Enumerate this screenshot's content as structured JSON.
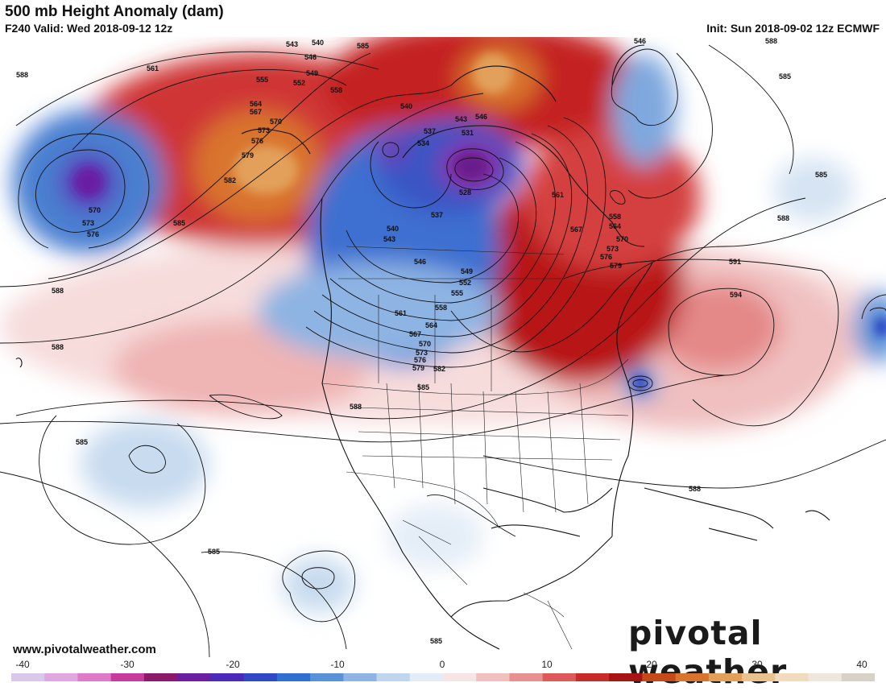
{
  "header": {
    "title": "500 mb Height Anomaly (dam)",
    "subtitle": "F240 Valid: Wed 2018-09-12 12z",
    "init": "Init: Sun 2018-09-02 12z ECMWF"
  },
  "footer": {
    "website": "www.pivotalweather.com",
    "brand": "pivotal weather"
  },
  "colorbar": {
    "ticks": [
      "-40",
      "-30",
      "-20",
      "-10",
      "0",
      "10",
      "20",
      "30",
      "40"
    ],
    "colors": [
      "#d9c8ec",
      "#e0a8de",
      "#e07ac8",
      "#c63b9b",
      "#8b1a6b",
      "#6a1fa3",
      "#4a2ab8",
      "#2f48c4",
      "#2f6fd0",
      "#5a92d8",
      "#8db4e3",
      "#c0d6ee",
      "#e4edf7",
      "#f7e4e4",
      "#f2bfbf",
      "#e99090",
      "#de5a5a",
      "#c92a2a",
      "#a81414",
      "#c44a1a",
      "#d9742e",
      "#e2a05a",
      "#e9c28e",
      "#f0dcbc",
      "#eee8dc",
      "#d8d2c6"
    ]
  },
  "contour_labels": [
    {
      "text": "588"
    },
    {
      "text": "561"
    },
    {
      "text": "543"
    },
    {
      "text": "540"
    },
    {
      "text": "546"
    },
    {
      "text": "549"
    },
    {
      "text": "555"
    },
    {
      "text": "552"
    },
    {
      "text": "558"
    },
    {
      "text": "564"
    },
    {
      "text": "567"
    },
    {
      "text": "570"
    },
    {
      "text": "573"
    },
    {
      "text": "576"
    },
    {
      "text": "579"
    },
    {
      "text": "582"
    },
    {
      "text": "585"
    },
    {
      "text": "570"
    },
    {
      "text": "573"
    },
    {
      "text": "576"
    },
    {
      "text": "588"
    },
    {
      "text": "588"
    },
    {
      "text": "585"
    },
    {
      "text": "585"
    },
    {
      "text": "585"
    },
    {
      "text": "540"
    },
    {
      "text": "537"
    },
    {
      "text": "534"
    },
    {
      "text": "543"
    },
    {
      "text": "546"
    },
    {
      "text": "531"
    },
    {
      "text": "528"
    },
    {
      "text": "537"
    },
    {
      "text": "540"
    },
    {
      "text": "543"
    },
    {
      "text": "546"
    },
    {
      "text": "549"
    },
    {
      "text": "552"
    },
    {
      "text": "555"
    },
    {
      "text": "558"
    },
    {
      "text": "561"
    },
    {
      "text": "564"
    },
    {
      "text": "567"
    },
    {
      "text": "570"
    },
    {
      "text": "573"
    },
    {
      "text": "576"
    },
    {
      "text": "579"
    },
    {
      "text": "582"
    },
    {
      "text": "585"
    },
    {
      "text": "588"
    },
    {
      "text": "561"
    },
    {
      "text": "558"
    },
    {
      "text": "564"
    },
    {
      "text": "567"
    },
    {
      "text": "570"
    },
    {
      "text": "573"
    },
    {
      "text": "576"
    },
    {
      "text": "579"
    },
    {
      "text": "591"
    },
    {
      "text": "594"
    },
    {
      "text": "588"
    },
    {
      "text": "585"
    },
    {
      "text": "585"
    },
    {
      "text": "588"
    },
    {
      "text": "546"
    },
    {
      "text": "588"
    },
    {
      "text": "585"
    }
  ],
  "legend_colors": {
    "coast": "#111111",
    "background": "#ffffff"
  }
}
